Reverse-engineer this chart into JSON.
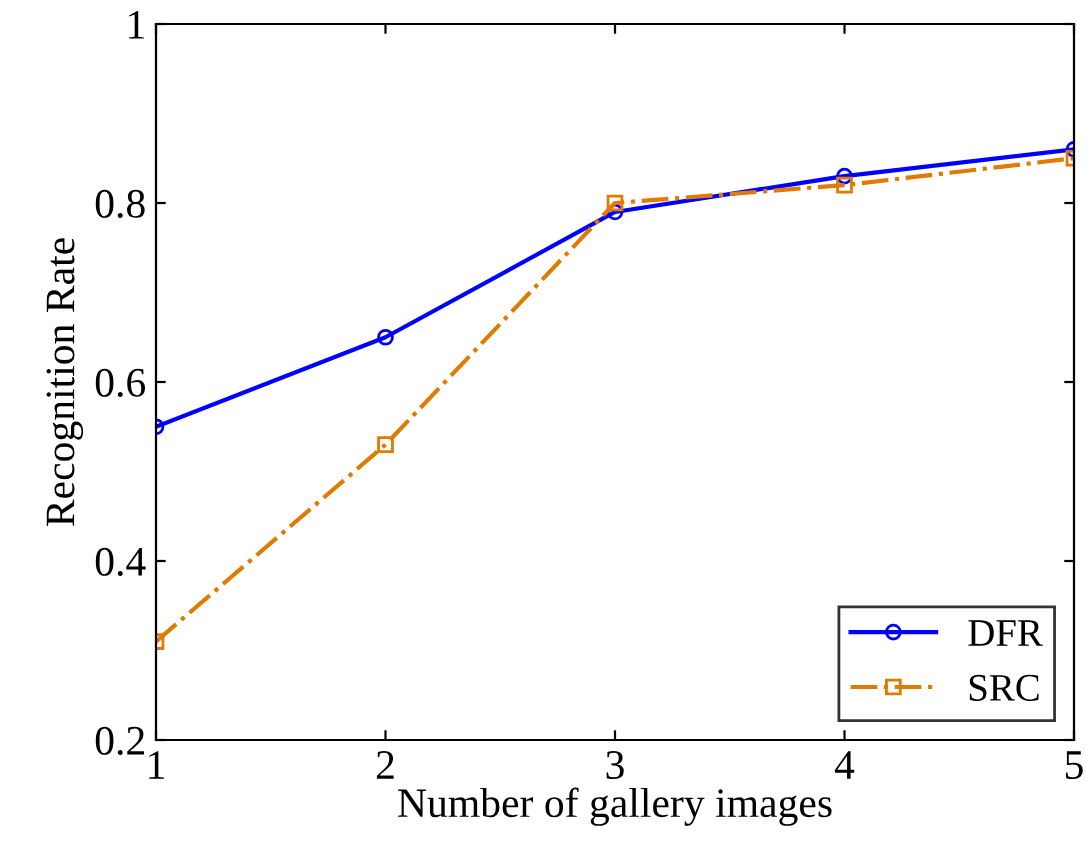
{
  "chart_data": {
    "type": "line",
    "xlabel": "Number of gallery images",
    "ylabel": "Recognition Rate",
    "x": [
      1,
      2,
      3,
      4,
      5
    ],
    "series": [
      {
        "name": "DFR",
        "color": "#0000ff",
        "values": [
          0.55,
          0.65,
          0.79,
          0.83,
          0.86
        ],
        "marker": "circle",
        "line_style": "solid"
      },
      {
        "name": "SRC",
        "color": "#e07b00",
        "values": [
          0.31,
          0.53,
          0.8,
          0.82,
          0.85
        ],
        "marker": "square",
        "line_style": "dashed"
      }
    ],
    "xlim": [
      1,
      5
    ],
    "xticks": [
      1,
      2,
      3,
      4,
      5
    ],
    "ylim": [
      0.2,
      1
    ],
    "yticks": [
      0.2,
      0.4,
      0.6,
      0.8,
      1
    ],
    "grid": false,
    "legend": "bottom right"
  }
}
